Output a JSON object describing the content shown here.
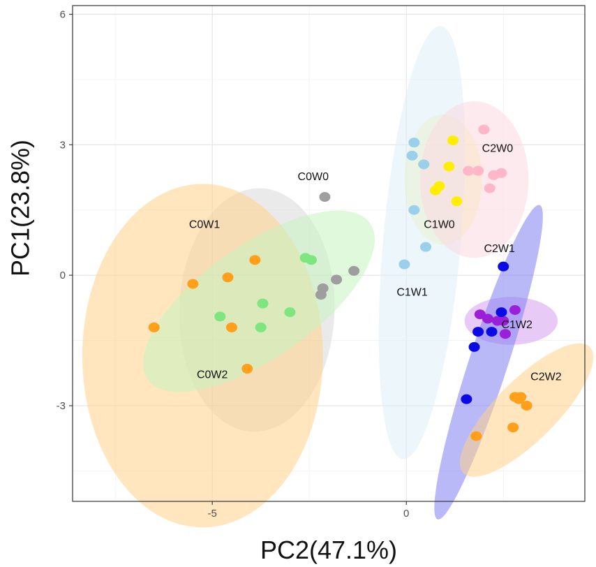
{
  "chart_data": {
    "type": "scatter",
    "title": "",
    "xlabel": "PC2(47.1%)",
    "ylabel": "PC1(23.8%)",
    "xlim": [
      -8.6,
      4.6
    ],
    "ylim": [
      -5.2,
      6.2
    ],
    "x_ticks": [
      -5,
      0
    ],
    "x_tick_labels": [
      "-5",
      "0"
    ],
    "y_ticks": [
      -3,
      0,
      3,
      6
    ],
    "y_tick_labels": [
      "-3",
      "0",
      "3",
      "6"
    ],
    "grid": true,
    "groups": [
      {
        "name": "C0W0",
        "color": "#9e9e9e",
        "ellipse_color": "#d9d9d9",
        "ellipse": {
          "cx": -3.85,
          "cy": -0.8,
          "rx": 2.0,
          "ry": 2.8,
          "angle": 2
        },
        "points": [
          [
            -2.1,
            1.8
          ],
          [
            -1.35,
            0.1
          ],
          [
            -1.8,
            -0.1
          ],
          [
            -2.15,
            -0.3
          ],
          [
            -2.2,
            -0.45
          ]
        ]
      },
      {
        "name": "C0W1",
        "color": "#ff9f1a",
        "ellipse_color": "#ffd28a",
        "ellipse": {
          "cx": -5.25,
          "cy": -1.85,
          "rx": 3.1,
          "ry": 3.95,
          "angle": 0
        },
        "points": [
          [
            -6.5,
            -1.2
          ],
          [
            -5.5,
            -0.2
          ],
          [
            -4.6,
            -0.05
          ],
          [
            -4.5,
            -1.2
          ],
          [
            -3.9,
            0.35
          ],
          [
            -4.1,
            -2.15
          ]
        ]
      },
      {
        "name": "C0W2",
        "color": "#7ee67e",
        "ellipse_color": "#c6f2c0",
        "ellipse": {
          "cx": -3.8,
          "cy": -0.6,
          "rx": 3.5,
          "ry": 1.3,
          "angle": -35
        },
        "points": [
          [
            -2.6,
            0.4
          ],
          [
            -2.45,
            0.35
          ],
          [
            -3.7,
            -0.65
          ],
          [
            -4.8,
            -0.95
          ],
          [
            -3.75,
            -1.2
          ],
          [
            -3.0,
            -0.85
          ]
        ]
      },
      {
        "name": "C1W0",
        "color": "#ffee00",
        "ellipse_color": "#fcf5a2",
        "ellipse": {
          "cx": 0.95,
          "cy": 2.2,
          "rx": 1.0,
          "ry": 1.5,
          "angle": 0
        },
        "points": [
          [
            1.2,
            3.1
          ],
          [
            1.1,
            2.5
          ],
          [
            0.85,
            2.05
          ],
          [
            0.75,
            1.95
          ],
          [
            1.3,
            1.7
          ],
          [
            0.45,
            2.55
          ]
        ]
      },
      {
        "name": "C1W1",
        "color": "#9ad0ec",
        "ellipse_color": "#ddeff8",
        "ellipse": {
          "cx": 0.4,
          "cy": 0.75,
          "rx": 1.0,
          "ry": 5.0,
          "angle": 5
        },
        "points": [
          [
            0.2,
            3.05
          ],
          [
            0.15,
            2.75
          ],
          [
            0.45,
            2.55
          ],
          [
            0.2,
            1.5
          ],
          [
            0.5,
            0.65
          ],
          [
            -0.05,
            0.25
          ]
        ]
      },
      {
        "name": "C1W2",
        "color": "#9b1ed8",
        "ellipse_color": "#d59ef0",
        "ellipse": {
          "cx": 2.7,
          "cy": -1.05,
          "rx": 1.2,
          "ry": 0.55,
          "angle": 0
        },
        "points": [
          [
            2.8,
            -0.8
          ],
          [
            1.9,
            -0.9
          ],
          [
            2.1,
            -1.0
          ],
          [
            2.35,
            -1.05
          ],
          [
            2.5,
            -1.05
          ],
          [
            2.55,
            -1.35
          ]
        ]
      },
      {
        "name": "C2W0",
        "color": "#ffb6c8",
        "ellipse_color": "#fcd8e2",
        "ellipse": {
          "cx": 1.75,
          "cy": 2.2,
          "rx": 1.4,
          "ry": 1.8,
          "angle": 0
        },
        "points": [
          [
            2.0,
            3.35
          ],
          [
            1.6,
            2.4
          ],
          [
            1.85,
            2.4
          ],
          [
            2.25,
            2.3
          ],
          [
            2.45,
            2.35
          ],
          [
            2.15,
            2.0
          ]
        ]
      },
      {
        "name": "C2W1",
        "color": "#0a0ae6",
        "ellipse_color": "#8080f2",
        "ellipse": {
          "cx": 2.12,
          "cy": -2.0,
          "rx": 0.5,
          "ry": 3.8,
          "angle": 18
        },
        "points": [
          [
            2.5,
            0.2
          ],
          [
            2.45,
            -0.85
          ],
          [
            2.2,
            -1.3
          ],
          [
            1.85,
            -1.3
          ],
          [
            1.75,
            -1.65
          ],
          [
            1.55,
            -2.85
          ]
        ]
      },
      {
        "name": "C2W2",
        "color": "#ff9f1a",
        "ellipse_color": "#ffd28a",
        "ellipse": {
          "cx": 3.1,
          "cy": -3.1,
          "rx": 2.3,
          "ry": 0.7,
          "angle": -45
        },
        "points": [
          [
            2.8,
            -2.8
          ],
          [
            2.95,
            -2.8
          ],
          [
            2.9,
            -2.85
          ],
          [
            3.1,
            -3.0
          ],
          [
            2.75,
            -3.5
          ],
          [
            1.8,
            -3.7
          ]
        ]
      }
    ],
    "labels": [
      {
        "text": "C0W0",
        "x": -2.4,
        "y": 2.25
      },
      {
        "text": "C0W1",
        "x": -5.2,
        "y": 1.15
      },
      {
        "text": "C0W2",
        "x": -5.0,
        "y": -2.3
      },
      {
        "text": "C1W0",
        "x": 0.85,
        "y": 1.15
      },
      {
        "text": "C1W1",
        "x": 0.15,
        "y": -0.4
      },
      {
        "text": "C1W2",
        "x": 2.85,
        "y": -1.15
      },
      {
        "text": "C2W0",
        "x": 2.35,
        "y": 2.9
      },
      {
        "text": "C2W1",
        "x": 2.4,
        "y": 0.6
      },
      {
        "text": "C2W2",
        "x": 3.6,
        "y": -2.35
      }
    ]
  }
}
